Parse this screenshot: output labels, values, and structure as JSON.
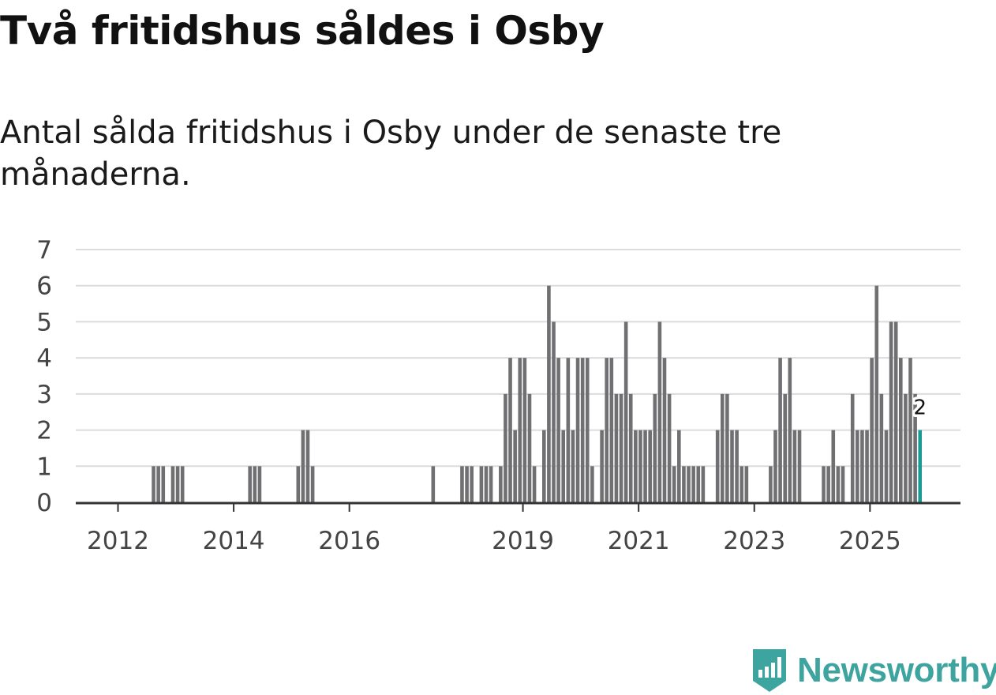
{
  "title": "Två fritidshus såldes i Osby",
  "subtitle": "Antal sålda fritidshus i Osby under de senaste tre månaderna.",
  "brand": {
    "name": "Newsworthy",
    "icon": "newsworthy-logo-icon",
    "color": "#3ea49f"
  },
  "chart_data": {
    "type": "bar",
    "title": "Två fritidshus såldes i Osby",
    "subtitle": "Antal sålda fritidshus i Osby under de senaste tre månaderna.",
    "xlabel": "",
    "ylabel": "",
    "ylim": [
      0,
      7
    ],
    "y_ticks": [
      0,
      1,
      2,
      3,
      4,
      5,
      6,
      7
    ],
    "grid": true,
    "x_start": "2011-01",
    "x_end": "2026-06",
    "x_ticks": [
      {
        "label": "2012",
        "month": "2012-01"
      },
      {
        "label": "2014",
        "month": "2014-01"
      },
      {
        "label": "2016",
        "month": "2016-01"
      },
      {
        "label": "2019",
        "month": "2019-01"
      },
      {
        "label": "2021",
        "month": "2021-01"
      },
      {
        "label": "2023",
        "month": "2023-01"
      },
      {
        "label": "2025",
        "month": "2025-01"
      }
    ],
    "bar_color": "#707073",
    "highlight_color": "#1a9c95",
    "highlight_label": "2",
    "series": [
      {
        "name": "Antal sålda fritidshus",
        "points": [
          {
            "month": "2012-08",
            "value": 1
          },
          {
            "month": "2012-09",
            "value": 1
          },
          {
            "month": "2012-10",
            "value": 1
          },
          {
            "month": "2012-12",
            "value": 1
          },
          {
            "month": "2013-01",
            "value": 1
          },
          {
            "month": "2013-02",
            "value": 1
          },
          {
            "month": "2014-04",
            "value": 1
          },
          {
            "month": "2014-05",
            "value": 1
          },
          {
            "month": "2014-06",
            "value": 1
          },
          {
            "month": "2015-02",
            "value": 1
          },
          {
            "month": "2015-03",
            "value": 2
          },
          {
            "month": "2015-04",
            "value": 2
          },
          {
            "month": "2015-05",
            "value": 1
          },
          {
            "month": "2017-06",
            "value": 1
          },
          {
            "month": "2017-12",
            "value": 1
          },
          {
            "month": "2018-01",
            "value": 1
          },
          {
            "month": "2018-02",
            "value": 1
          },
          {
            "month": "2018-04",
            "value": 1
          },
          {
            "month": "2018-05",
            "value": 1
          },
          {
            "month": "2018-06",
            "value": 1
          },
          {
            "month": "2018-08",
            "value": 1
          },
          {
            "month": "2018-09",
            "value": 3
          },
          {
            "month": "2018-10",
            "value": 4
          },
          {
            "month": "2018-11",
            "value": 2
          },
          {
            "month": "2018-12",
            "value": 4
          },
          {
            "month": "2019-01",
            "value": 4
          },
          {
            "month": "2019-02",
            "value": 3
          },
          {
            "month": "2019-03",
            "value": 1
          },
          {
            "month": "2019-05",
            "value": 2
          },
          {
            "month": "2019-06",
            "value": 6
          },
          {
            "month": "2019-07",
            "value": 5
          },
          {
            "month": "2019-08",
            "value": 4
          },
          {
            "month": "2019-09",
            "value": 2
          },
          {
            "month": "2019-10",
            "value": 4
          },
          {
            "month": "2019-11",
            "value": 2
          },
          {
            "month": "2019-12",
            "value": 4
          },
          {
            "month": "2020-01",
            "value": 4
          },
          {
            "month": "2020-02",
            "value": 4
          },
          {
            "month": "2020-03",
            "value": 1
          },
          {
            "month": "2020-05",
            "value": 2
          },
          {
            "month": "2020-06",
            "value": 4
          },
          {
            "month": "2020-07",
            "value": 4
          },
          {
            "month": "2020-08",
            "value": 3
          },
          {
            "month": "2020-09",
            "value": 3
          },
          {
            "month": "2020-10",
            "value": 5
          },
          {
            "month": "2020-11",
            "value": 3
          },
          {
            "month": "2020-12",
            "value": 2
          },
          {
            "month": "2021-01",
            "value": 2
          },
          {
            "month": "2021-02",
            "value": 2
          },
          {
            "month": "2021-03",
            "value": 2
          },
          {
            "month": "2021-04",
            "value": 3
          },
          {
            "month": "2021-05",
            "value": 5
          },
          {
            "month": "2021-06",
            "value": 4
          },
          {
            "month": "2021-07",
            "value": 3
          },
          {
            "month": "2021-08",
            "value": 1
          },
          {
            "month": "2021-09",
            "value": 2
          },
          {
            "month": "2021-10",
            "value": 1
          },
          {
            "month": "2021-11",
            "value": 1
          },
          {
            "month": "2021-12",
            "value": 1
          },
          {
            "month": "2022-01",
            "value": 1
          },
          {
            "month": "2022-02",
            "value": 1
          },
          {
            "month": "2022-05",
            "value": 2
          },
          {
            "month": "2022-06",
            "value": 3
          },
          {
            "month": "2022-07",
            "value": 3
          },
          {
            "month": "2022-08",
            "value": 2
          },
          {
            "month": "2022-09",
            "value": 2
          },
          {
            "month": "2022-10",
            "value": 1
          },
          {
            "month": "2022-11",
            "value": 1
          },
          {
            "month": "2023-04",
            "value": 1
          },
          {
            "month": "2023-05",
            "value": 2
          },
          {
            "month": "2023-06",
            "value": 4
          },
          {
            "month": "2023-07",
            "value": 3
          },
          {
            "month": "2023-08",
            "value": 4
          },
          {
            "month": "2023-09",
            "value": 2
          },
          {
            "month": "2023-10",
            "value": 2
          },
          {
            "month": "2024-03",
            "value": 1
          },
          {
            "month": "2024-04",
            "value": 1
          },
          {
            "month": "2024-05",
            "value": 2
          },
          {
            "month": "2024-06",
            "value": 1
          },
          {
            "month": "2024-07",
            "value": 1
          },
          {
            "month": "2024-09",
            "value": 3
          },
          {
            "month": "2024-10",
            "value": 2
          },
          {
            "month": "2024-11",
            "value": 2
          },
          {
            "month": "2024-12",
            "value": 2
          },
          {
            "month": "2025-01",
            "value": 4
          },
          {
            "month": "2025-02",
            "value": 6
          },
          {
            "month": "2025-03",
            "value": 3
          },
          {
            "month": "2025-04",
            "value": 2
          },
          {
            "month": "2025-05",
            "value": 5
          },
          {
            "month": "2025-06",
            "value": 5
          },
          {
            "month": "2025-07",
            "value": 4
          },
          {
            "month": "2025-08",
            "value": 3
          },
          {
            "month": "2025-09",
            "value": 4
          },
          {
            "month": "2025-10",
            "value": 3
          },
          {
            "month": "2025-11",
            "value": 2
          }
        ]
      }
    ]
  }
}
